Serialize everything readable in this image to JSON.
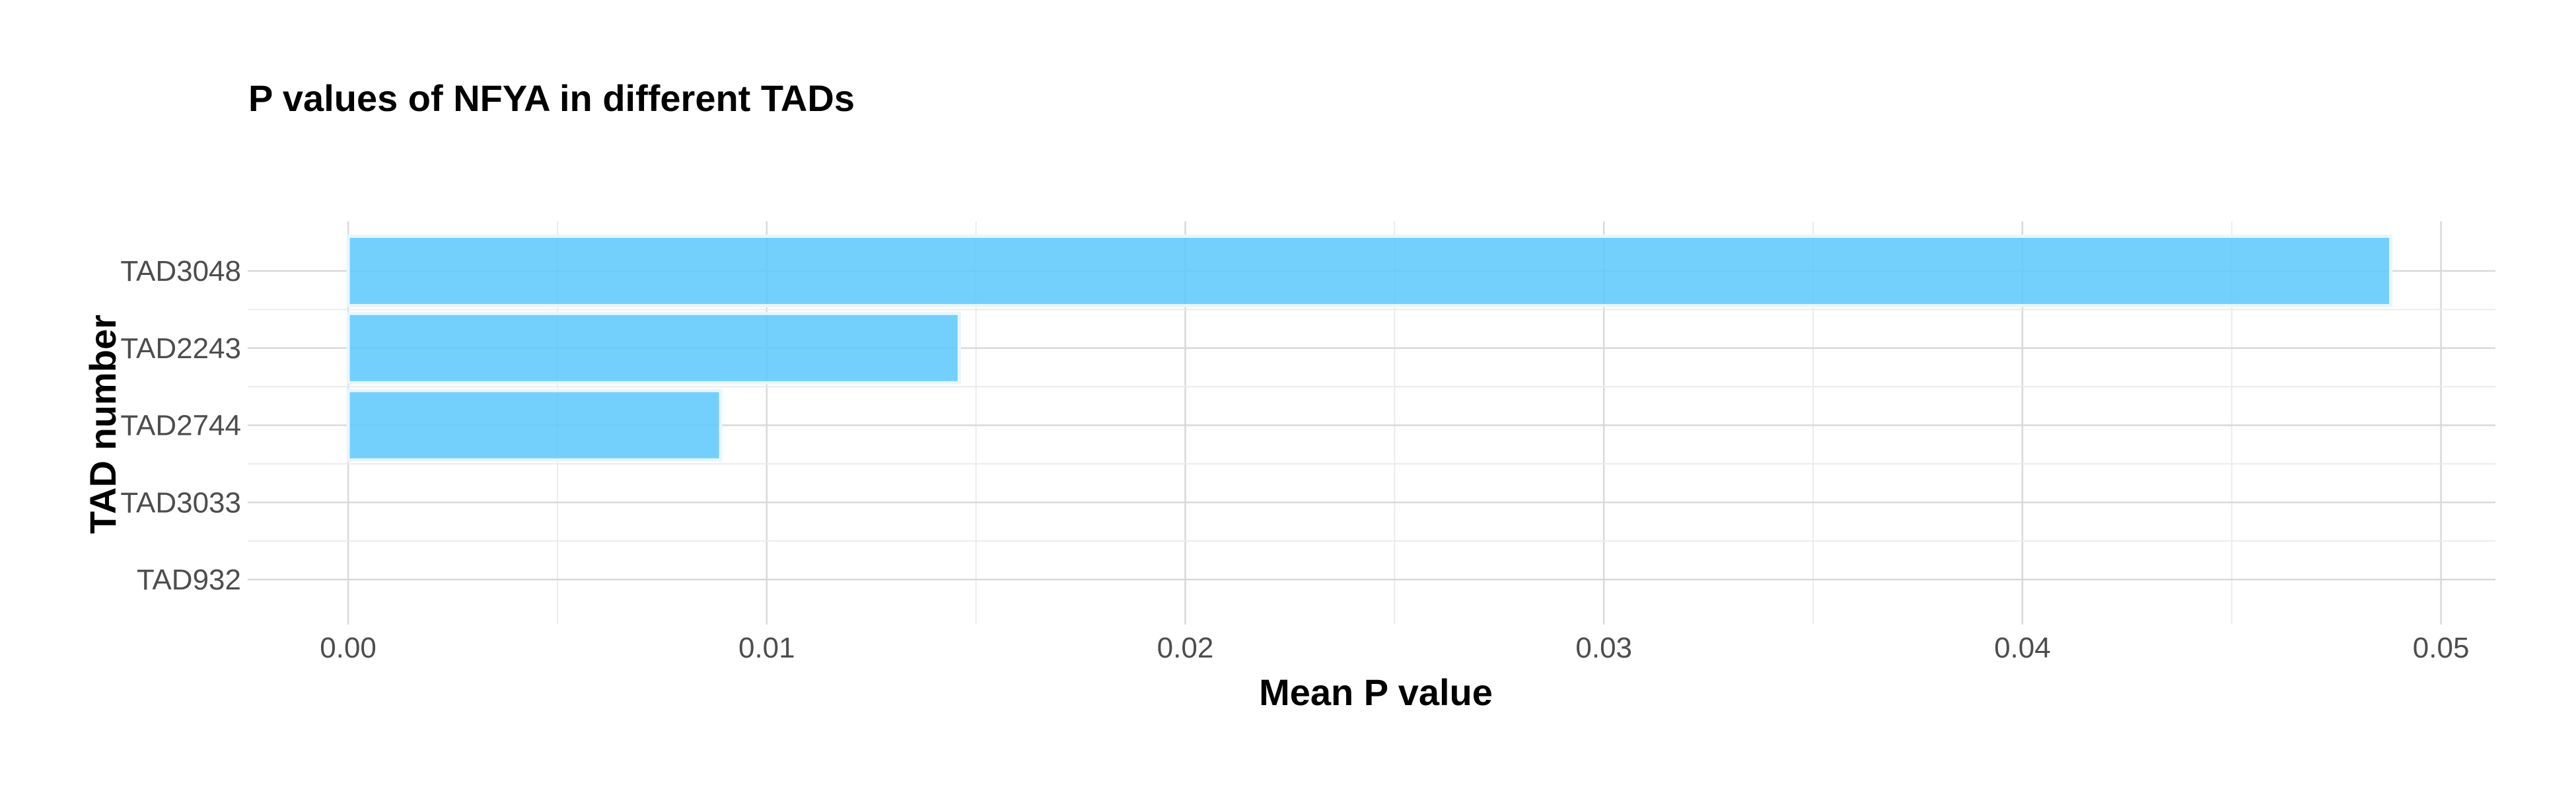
{
  "chart_data": {
    "type": "bar",
    "orientation": "horizontal",
    "title": "P values of NFYA in different TADs",
    "xlabel": "Mean P value",
    "ylabel": "TAD number",
    "categories": [
      "TAD3048",
      "TAD2243",
      "TAD2744",
      "TAD3033",
      "TAD932"
    ],
    "values": [
      0.0488,
      0.0146,
      0.0089,
      0.0,
      0.0
    ],
    "xlim": [
      -0.0024,
      0.0513
    ],
    "xticks": [
      0.0,
      0.01,
      0.02,
      0.03,
      0.04,
      0.05
    ],
    "xtick_labels": [
      "0.00",
      "0.01",
      "0.02",
      "0.03",
      "0.04",
      "0.05"
    ],
    "grid": true,
    "legend": "none",
    "bar_color": "#5bc8fb",
    "bar_outline_color": "#e8f6ff"
  }
}
